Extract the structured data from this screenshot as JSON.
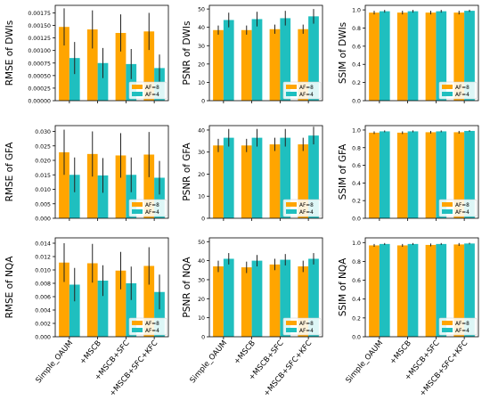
{
  "colors": {
    "af8": "#ffa500",
    "af4": "#1fbfbf",
    "error": "#222222",
    "axis": "#000000",
    "legend_border": "#cccccc"
  },
  "categories": [
    "Simple_OAUM",
    "+MSCB",
    "+MSCB+SFC",
    "+MSCB+SFC+KFC"
  ],
  "legend_labels": [
    "AF=8",
    "AF=4"
  ],
  "chart_data": [
    {
      "type": "bar",
      "ylabel": "RMSE of DWIs",
      "ylim": [
        0,
        0.0019
      ],
      "yticks": [
        "0.00000",
        "0.00025",
        "0.00050",
        "0.00075",
        "0.00100",
        "0.00125",
        "0.00150",
        "0.00175"
      ],
      "ytick_values": [
        0,
        0.00025,
        0.0005,
        0.00075,
        0.001,
        0.00125,
        0.0015,
        0.00175
      ],
      "legend": "lower right",
      "show_xlabels": false,
      "series": [
        {
          "name": "AF=8",
          "values": [
            0.00147,
            0.00142,
            0.00135,
            0.00138
          ],
          "err": [
            0.00037,
            0.00038,
            0.00037,
            0.00037
          ]
        },
        {
          "name": "AF=4",
          "values": [
            0.00085,
            0.00075,
            0.00073,
            0.00065
          ],
          "err": [
            0.00032,
            0.0003,
            0.0003,
            0.00027
          ]
        }
      ]
    },
    {
      "type": "bar",
      "ylabel": "PSNR of DWIs",
      "ylim": [
        0,
        52
      ],
      "yticks": [
        "0",
        "10",
        "20",
        "30",
        "40",
        "50"
      ],
      "ytick_values": [
        0,
        10,
        20,
        30,
        40,
        50
      ],
      "legend": "lower right",
      "show_xlabels": false,
      "series": [
        {
          "name": "AF=8",
          "values": [
            38.5,
            38.5,
            39,
            39
          ],
          "err": [
            2.5,
            2.5,
            2.5,
            2.5
          ]
        },
        {
          "name": "AF=4",
          "values": [
            44,
            44.5,
            45,
            46
          ],
          "err": [
            4,
            4,
            4,
            4
          ]
        }
      ]
    },
    {
      "type": "bar",
      "ylabel": "SSIM of DWIs",
      "ylim": [
        0,
        1.05
      ],
      "yticks": [
        "0.0",
        "0.2",
        "0.4",
        "0.6",
        "0.8",
        "1.0"
      ],
      "ytick_values": [
        0,
        0.2,
        0.4,
        0.6,
        0.8,
        1.0
      ],
      "legend": "lower right",
      "show_xlabels": false,
      "series": [
        {
          "name": "AF=8",
          "values": [
            0.97,
            0.97,
            0.97,
            0.97
          ],
          "err": [
            0.02,
            0.02,
            0.02,
            0.02
          ]
        },
        {
          "name": "AF=4",
          "values": [
            0.985,
            0.985,
            0.985,
            0.99
          ],
          "err": [
            0.015,
            0.015,
            0.015,
            0.012
          ]
        }
      ]
    },
    {
      "type": "bar",
      "ylabel": "RMSE of GFA",
      "ylim": [
        0,
        0.032
      ],
      "yticks": [
        "0.000",
        "0.005",
        "0.010",
        "0.015",
        "0.020",
        "0.025",
        "0.030"
      ],
      "ytick_values": [
        0,
        0.005,
        0.01,
        0.015,
        0.02,
        0.025,
        0.03
      ],
      "legend": "lower right",
      "show_xlabels": false,
      "series": [
        {
          "name": "AF=8",
          "values": [
            0.0228,
            0.0222,
            0.0217,
            0.022
          ],
          "err": [
            0.0078,
            0.0078,
            0.0077,
            0.0078
          ]
        },
        {
          "name": "AF=4",
          "values": [
            0.015,
            0.0148,
            0.015,
            0.014
          ],
          "err": [
            0.006,
            0.006,
            0.006,
            0.0058
          ]
        }
      ]
    },
    {
      "type": "bar",
      "ylabel": "PSNR of GFA",
      "ylim": [
        0,
        42
      ],
      "yticks": [
        "0",
        "10",
        "20",
        "30",
        "40"
      ],
      "ytick_values": [
        0,
        10,
        20,
        30,
        40
      ],
      "legend": "lower right",
      "show_xlabels": false,
      "series": [
        {
          "name": "AF=8",
          "values": [
            33,
            33,
            33.5,
            33.5
          ],
          "err": [
            3,
            3,
            3,
            3
          ]
        },
        {
          "name": "AF=4",
          "values": [
            36.5,
            36.5,
            36.5,
            37.5
          ],
          "err": [
            4,
            4,
            4,
            4
          ]
        }
      ]
    },
    {
      "type": "bar",
      "ylabel": "SSIM of GFA",
      "ylim": [
        0,
        1.05
      ],
      "yticks": [
        "0.0",
        "0.2",
        "0.4",
        "0.6",
        "0.8",
        "1.0"
      ],
      "ytick_values": [
        0,
        0.2,
        0.4,
        0.6,
        0.8,
        1.0
      ],
      "legend": "lower right",
      "show_xlabels": false,
      "series": [
        {
          "name": "AF=8",
          "values": [
            0.97,
            0.97,
            0.975,
            0.975
          ],
          "err": [
            0.015,
            0.015,
            0.015,
            0.015
          ]
        },
        {
          "name": "AF=4",
          "values": [
            0.985,
            0.985,
            0.985,
            0.99
          ],
          "err": [
            0.01,
            0.01,
            0.01,
            0.008
          ]
        }
      ]
    },
    {
      "type": "bar",
      "ylabel": "RMSE of NQA",
      "ylim": [
        0,
        0.0148
      ],
      "yticks": [
        "0.000",
        "0.002",
        "0.004",
        "0.006",
        "0.008",
        "0.010",
        "0.012",
        "0.014"
      ],
      "ytick_values": [
        0,
        0.002,
        0.004,
        0.006,
        0.008,
        0.01,
        0.012,
        0.014
      ],
      "legend": "lower right",
      "show_xlabels": true,
      "series": [
        {
          "name": "AF=8",
          "values": [
            0.0111,
            0.011,
            0.0099,
            0.0106
          ],
          "err": [
            0.0029,
            0.0029,
            0.0028,
            0.0028
          ]
        },
        {
          "name": "AF=4",
          "values": [
            0.0078,
            0.0084,
            0.008,
            0.0067
          ],
          "err": [
            0.0025,
            0.0023,
            0.0025,
            0.0026
          ]
        }
      ]
    },
    {
      "type": "bar",
      "ylabel": "PSNR of NQA",
      "ylim": [
        0,
        52
      ],
      "yticks": [
        "0",
        "10",
        "20",
        "30",
        "40",
        "50"
      ],
      "ytick_values": [
        0,
        10,
        20,
        30,
        40,
        50
      ],
      "legend": "lower right",
      "show_xlabels": true,
      "series": [
        {
          "name": "AF=8",
          "values": [
            37,
            36.5,
            38,
            37
          ],
          "err": [
            3,
            3,
            3,
            3
          ]
        },
        {
          "name": "AF=4",
          "values": [
            41,
            40,
            40.5,
            41
          ],
          "err": [
            3,
            3,
            3,
            3
          ]
        }
      ]
    },
    {
      "type": "bar",
      "ylabel": "SSIM of NQA",
      "ylim": [
        0,
        1.05
      ],
      "yticks": [
        "0.0",
        "0.2",
        "0.4",
        "0.6",
        "0.8",
        "1.0"
      ],
      "ytick_values": [
        0,
        0.2,
        0.4,
        0.6,
        0.8,
        1.0
      ],
      "legend": "lower right",
      "show_xlabels": true,
      "series": [
        {
          "name": "AF=8",
          "values": [
            0.97,
            0.97,
            0.975,
            0.98
          ],
          "err": [
            0.015,
            0.015,
            0.015,
            0.015
          ]
        },
        {
          "name": "AF=4",
          "values": [
            0.985,
            0.985,
            0.985,
            0.99
          ],
          "err": [
            0.01,
            0.01,
            0.01,
            0.008
          ]
        }
      ]
    }
  ]
}
